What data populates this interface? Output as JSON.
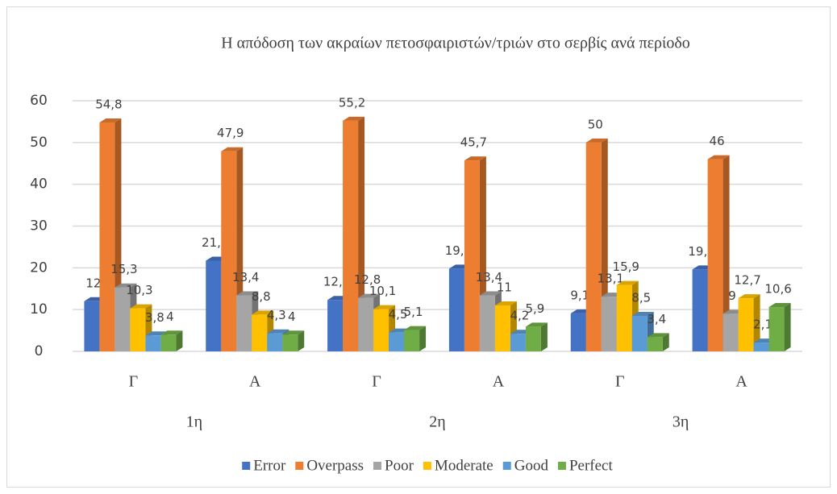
{
  "chart_data": {
    "type": "bar3d",
    "title": "Η απόδοση των ακραίων πετοσφαιριστών/τριών στο σερβίς ανά περίοδο",
    "categories": [
      "Γ",
      "Α",
      "Γ",
      "Α",
      "Γ",
      "Α"
    ],
    "category_groups": [
      "1η",
      "2η",
      "3η"
    ],
    "series": [
      {
        "name": "Error",
        "color": "#4472c4",
        "values": [
          12,
          21.7,
          12.3,
          19.8,
          9.1,
          19.6
        ],
        "value_labels": [
          "12",
          "21,7",
          "12,3",
          "19,8",
          "9,1",
          "19,6"
        ]
      },
      {
        "name": "Overpass",
        "color": "#ed7d31",
        "values": [
          54.8,
          47.9,
          55.2,
          45.7,
          50,
          46
        ],
        "value_labels": [
          "54,8",
          "47,9",
          "55,2",
          "45,7",
          "50",
          "46"
        ]
      },
      {
        "name": "Poor",
        "color": "#a5a5a5",
        "values": [
          15.3,
          13.4,
          12.8,
          13.4,
          13.1,
          9
        ],
        "value_labels": [
          "15,3",
          "13,4",
          "12,8",
          "13,4",
          "13,1",
          "9"
        ]
      },
      {
        "name": "Moderate",
        "color": "#ffc000",
        "values": [
          10.3,
          8.8,
          10.1,
          11,
          15.9,
          12.7
        ],
        "value_labels": [
          "10,3",
          "8,8",
          "10,1",
          "11",
          "15,9",
          "12,7"
        ]
      },
      {
        "name": "Good",
        "color": "#5b9bd5",
        "values": [
          3.8,
          4.3,
          4.5,
          4.2,
          8.5,
          2.1
        ],
        "value_labels": [
          "3,8",
          "4,3",
          "4,5",
          "4,2",
          "8,5",
          "2,1"
        ]
      },
      {
        "name": "Perfect",
        "color": "#70ad47",
        "values": [
          4,
          4,
          5.1,
          5.9,
          3.4,
          10.6
        ],
        "value_labels": [
          "4",
          "4",
          "5,1",
          "5,9",
          "3,4",
          "10,6"
        ]
      }
    ],
    "ylim": [
      0,
      60
    ],
    "yticks": [
      0,
      10,
      20,
      30,
      40,
      50,
      60
    ],
    "grid": true,
    "legend": "bottom"
  }
}
